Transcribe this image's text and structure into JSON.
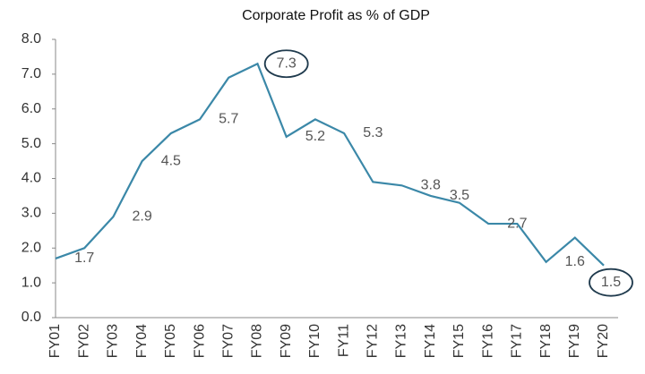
{
  "chart_data": {
    "type": "line",
    "title": "Corporate Profit as % of GDP",
    "categories": [
      "FY01",
      "FY02",
      "FY03",
      "FY04",
      "FY05",
      "FY06",
      "FY07",
      "FY08",
      "FY09",
      "FY10",
      "FY11",
      "FY12",
      "FY13",
      "FY14",
      "FY15",
      "FY16",
      "FY17",
      "FY18",
      "FY19",
      "FY20"
    ],
    "series": [
      {
        "name": "Corporate Profit as % of GDP",
        "color": "#3b88a8",
        "values": [
          1.7,
          2.0,
          2.9,
          4.5,
          5.3,
          5.7,
          6.9,
          7.3,
          5.2,
          5.7,
          5.3,
          3.9,
          3.8,
          3.5,
          3.3,
          2.7,
          2.7,
          1.6,
          2.3,
          1.5
        ],
        "value_labels": [
          "1.7",
          null,
          "2.9",
          "4.5",
          null,
          "5.7",
          null,
          "7.3",
          "5.2",
          null,
          "5.3",
          null,
          "3.8",
          "3.5",
          null,
          "2.7",
          null,
          "1.6",
          null,
          "1.5"
        ]
      }
    ],
    "circled_points": [
      7,
      19
    ],
    "ylim": [
      0,
      8
    ],
    "yticks": [
      {
        "value": 0,
        "label": "0.0"
      },
      {
        "value": 1,
        "label": "1.0"
      },
      {
        "value": 2,
        "label": "2.0"
      },
      {
        "value": 3,
        "label": "3.0"
      },
      {
        "value": 4,
        "label": "4.0"
      },
      {
        "value": 5,
        "label": "5.0"
      },
      {
        "value": 6,
        "label": "6.0"
      },
      {
        "value": 7,
        "label": "7.0"
      },
      {
        "value": 8,
        "label": "8.0"
      }
    ],
    "grid": false
  }
}
